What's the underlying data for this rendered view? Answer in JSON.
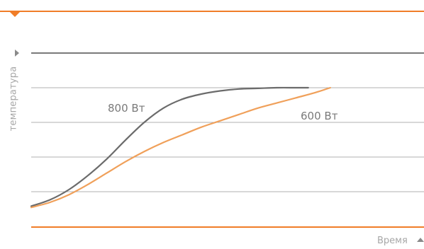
{
  "chart_data": {
    "type": "line",
    "title": "",
    "xlabel": "Время",
    "ylabel": "температура",
    "grid": true,
    "xlim": [
      0,
      1
    ],
    "ylim": [
      0,
      1
    ],
    "series": [
      {
        "name": "800 Вт",
        "color": "#6b6b6b",
        "x": [
          0,
          0.06,
          0.12,
          0.18,
          0.24,
          0.3,
          0.36,
          0.42,
          0.48,
          0.54,
          0.6,
          0.66,
          0.72,
          0.78,
          0.84,
          0.88
        ],
        "y": [
          0.07,
          0.12,
          0.2,
          0.31,
          0.44,
          0.59,
          0.73,
          0.84,
          0.91,
          0.95,
          0.975,
          0.99,
          0.995,
          1.0,
          1.0,
          1.0
        ]
      },
      {
        "name": "600 Вт",
        "color": "#f0a05a",
        "x": [
          0,
          0.06,
          0.12,
          0.18,
          0.24,
          0.3,
          0.36,
          0.42,
          0.48,
          0.54,
          0.6,
          0.66,
          0.72,
          0.78,
          0.84,
          0.9,
          0.95
        ],
        "y": [
          0.06,
          0.1,
          0.16,
          0.24,
          0.33,
          0.42,
          0.5,
          0.57,
          0.63,
          0.69,
          0.74,
          0.79,
          0.84,
          0.88,
          0.92,
          0.96,
          1.0
        ]
      }
    ]
  },
  "colors": {
    "accent": "#f07d28",
    "grid": "#a7a7a7",
    "axis_dark": "#7a7a7a"
  }
}
